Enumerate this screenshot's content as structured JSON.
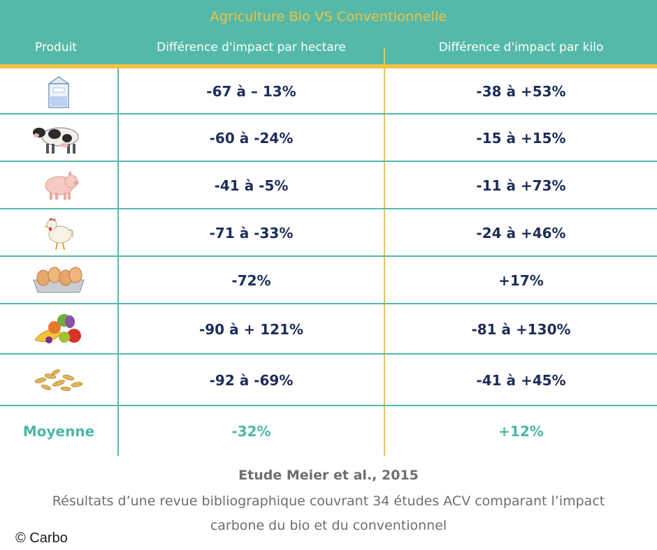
{
  "header": {
    "title": "Agriculture Bio VS Conventionnelle",
    "col_produit": "Produit",
    "col_hectare": "Différence d'impact par hectare",
    "col_kilo": "Différence d'impact par kilo"
  },
  "rows": [
    {
      "icon": "milk-carton-icon",
      "hectare": "-67 à – 13%",
      "kilo": "-38 à +53%"
    },
    {
      "icon": "cow-icon",
      "hectare": "-60 à -24%",
      "kilo": "-15 à +15%"
    },
    {
      "icon": "pig-icon",
      "hectare": "-41 à -5%",
      "kilo": "-11 à +73%"
    },
    {
      "icon": "chicken-icon",
      "hectare": "-71 à -33%",
      "kilo": "-24 à +46%"
    },
    {
      "icon": "eggs-icon",
      "hectare": "-72%",
      "kilo": "+17%"
    },
    {
      "icon": "fruits-vegetables-icon",
      "hectare": "-90 à + 121%",
      "kilo": "-81 à +130%"
    },
    {
      "icon": "cereals-icon",
      "hectare": "-92 à -69%",
      "kilo": "-41 à +45%"
    }
  ],
  "average": {
    "label": "Moyenne",
    "hectare": "-32%",
    "kilo": "+12%"
  },
  "footer": {
    "source": "Etude Meier et al., 2015",
    "desc_line1": "Résultats d’une revue bibliographique couvrant 34 études ACV comparant l’impact",
    "desc_line2": "carbone du bio et du conventionnel",
    "copyright": "©  Carbo"
  },
  "colors": {
    "teal": "#55b9a9",
    "gold": "#f2c240",
    "navy": "#1c2d5a",
    "gray": "#6e6e6e"
  },
  "chart_data": {
    "type": "table",
    "title": "Agriculture Bio VS Conventionnelle",
    "columns": [
      "Produit",
      "Différence d'impact par hectare",
      "Différence d'impact par kilo"
    ],
    "rows": [
      [
        "milk",
        "-67 à – 13%",
        "-38 à +53%"
      ],
      [
        "cow",
        "-60 à -24%",
        "-15 à +15%"
      ],
      [
        "pig",
        "-41 à -5%",
        "-11 à +73%"
      ],
      [
        "chicken",
        "-71 à -33%",
        "-24 à +46%"
      ],
      [
        "eggs",
        "-72%",
        "+17%"
      ],
      [
        "fruits-vegetables",
        "-90 à + 121%",
        "-81 à +130%"
      ],
      [
        "cereals",
        "-92 à -69%",
        "-41 à +45%"
      ],
      [
        "Moyenne",
        "-32%",
        "+12%"
      ]
    ]
  }
}
